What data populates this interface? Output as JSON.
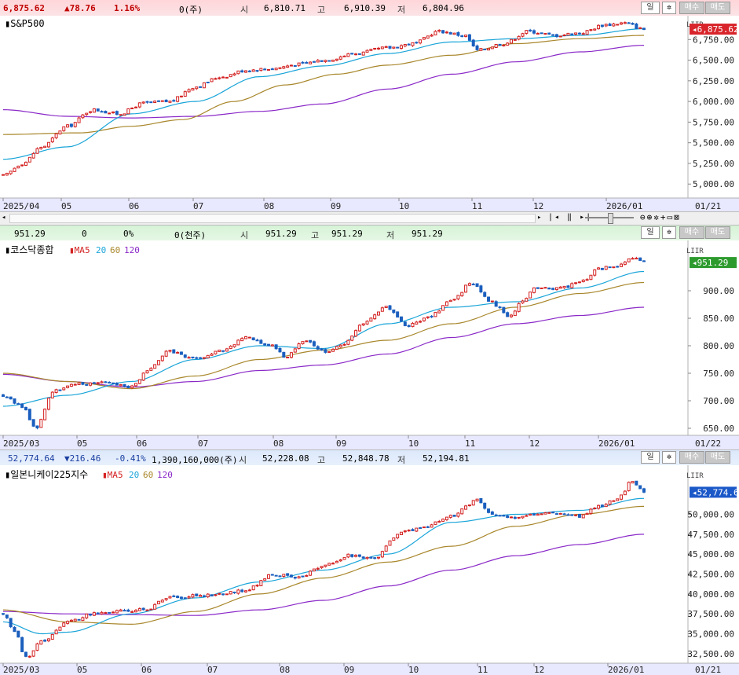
{
  "colors": {
    "up": "#d42020",
    "down": "#1b5fbe",
    "ma5": "#d42020",
    "ma20": "#18a4d8",
    "ma60": "#a8862a",
    "ma120": "#8a28c8",
    "price_tag_up": "#d8242a",
    "price_tag_green": "#2d9a2d",
    "price_tag_blue": "#1b58c8"
  },
  "period_label": "일",
  "buy_label": "매수",
  "sell_label": "매도",
  "panels": [
    {
      "quote": {
        "price": "6,875.62",
        "change": "▲78.76",
        "rate": "1.16%",
        "volume": "0(주)",
        "open_label": "시",
        "open": "6,810.71",
        "high_label": "고",
        "high": "6,910.39",
        "low_label": "저",
        "low": "6,804.96"
      },
      "title": "S&P500",
      "legend": [],
      "price_tag": "6,875.62",
      "x_labels": [
        "2025/04",
        "05",
        "06",
        "07",
        "08",
        "09",
        "10",
        "11",
        "12",
        "2026/01",
        "01/21"
      ],
      "y_labels": [
        "6,750.00",
        "6,500.00",
        "6,250.00",
        "6,000.00",
        "5,750.00",
        "5,500.00",
        "5,250.00",
        "5,000.00"
      ]
    },
    {
      "quote": {
        "price": "951.29",
        "change": "0",
        "rate": "0%",
        "volume": "0(천주)",
        "open_label": "시",
        "open": "951.29",
        "high_label": "고",
        "high": "951.29",
        "low_label": "저",
        "low": "951.29"
      },
      "title": "코스닥종합",
      "legend": [
        "MA",
        "5",
        "20",
        "60",
        "120"
      ],
      "price_tag": "951.29",
      "x_labels": [
        "2025/03",
        "05",
        "06",
        "07",
        "08",
        "09",
        "10",
        "11",
        "12",
        "2026/01",
        "01/22"
      ],
      "y_labels": [
        "900.00",
        "850.00",
        "800.00",
        "750.00",
        "700.00",
        "650.00"
      ]
    },
    {
      "quote": {
        "price": "52,774.64",
        "change": "▼216.46",
        "rate": "-0.41%",
        "volume": "1,390,160,000(주)",
        "open_label": "시",
        "open": "52,228.08",
        "high_label": "고",
        "high": "52,848.78",
        "low_label": "저",
        "low": "52,194.81"
      },
      "title": "일본니케이225지수",
      "legend": [
        "MA",
        "5",
        "20",
        "60",
        "120"
      ],
      "price_tag": "52,774.64",
      "x_labels": [
        "2025/03",
        "05",
        "06",
        "07",
        "08",
        "09",
        "10",
        "11",
        "12",
        "2026/01",
        "01/21"
      ],
      "y_labels": [
        "50,000.00",
        "47,500.00",
        "45,000.00",
        "42,500.00",
        "40,000.00",
        "37,500.00",
        "35,000.00",
        "32,500.00"
      ]
    }
  ],
  "chart_data": [
    {
      "type": "candlestick",
      "title": "S&P500",
      "x_range": [
        "2025/04",
        "2026/01/21"
      ],
      "ylim": [
        4850,
        7000
      ],
      "last": 6875.62,
      "close_path": [
        [
          0,
          5100
        ],
        [
          0.03,
          5250
        ],
        [
          0.06,
          5450
        ],
        [
          0.1,
          5700
        ],
        [
          0.14,
          5900
        ],
        [
          0.18,
          5850
        ],
        [
          0.22,
          5980
        ],
        [
          0.26,
          6000
        ],
        [
          0.3,
          6180
        ],
        [
          0.34,
          6300
        ],
        [
          0.38,
          6380
        ],
        [
          0.42,
          6400
        ],
        [
          0.46,
          6450
        ],
        [
          0.5,
          6500
        ],
        [
          0.55,
          6580
        ],
        [
          0.6,
          6650
        ],
        [
          0.64,
          6700
        ],
        [
          0.68,
          6850
        ],
        [
          0.72,
          6800
        ],
        [
          0.74,
          6620
        ],
        [
          0.78,
          6700
        ],
        [
          0.82,
          6850
        ],
        [
          0.86,
          6800
        ],
        [
          0.9,
          6830
        ],
        [
          0.94,
          6930
        ],
        [
          0.97,
          6950
        ],
        [
          1.0,
          6875
        ]
      ],
      "ma20": [
        [
          0,
          5300
        ],
        [
          0.1,
          5450
        ],
        [
          0.2,
          5850
        ],
        [
          0.3,
          6000
        ],
        [
          0.4,
          6300
        ],
        [
          0.5,
          6430
        ],
        [
          0.6,
          6580
        ],
        [
          0.7,
          6720
        ],
        [
          0.8,
          6760
        ],
        [
          0.9,
          6800
        ],
        [
          1.0,
          6880
        ]
      ],
      "ma60": [
        [
          0,
          5600
        ],
        [
          0.12,
          5620
        ],
        [
          0.2,
          5700
        ],
        [
          0.28,
          5780
        ],
        [
          0.36,
          6000
        ],
        [
          0.44,
          6200
        ],
        [
          0.52,
          6330
        ],
        [
          0.6,
          6440
        ],
        [
          0.7,
          6560
        ],
        [
          0.8,
          6700
        ],
        [
          0.9,
          6760
        ],
        [
          1.0,
          6800
        ]
      ],
      "ma120": [
        [
          0,
          5900
        ],
        [
          0.1,
          5820
        ],
        [
          0.2,
          5800
        ],
        [
          0.3,
          5820
        ],
        [
          0.4,
          5880
        ],
        [
          0.5,
          5970
        ],
        [
          0.6,
          6150
        ],
        [
          0.7,
          6330
        ],
        [
          0.8,
          6480
        ],
        [
          0.9,
          6600
        ],
        [
          1.0,
          6680
        ]
      ]
    },
    {
      "type": "candlestick",
      "title": "코스닥종합",
      "x_range": [
        "2025/03",
        "2026/01/22"
      ],
      "ylim": [
        640,
        960
      ],
      "last": 951.29,
      "close_path": [
        [
          0,
          710
        ],
        [
          0.03,
          690
        ],
        [
          0.05,
          650
        ],
        [
          0.08,
          720
        ],
        [
          0.12,
          730
        ],
        [
          0.16,
          735
        ],
        [
          0.2,
          725
        ],
        [
          0.23,
          760
        ],
        [
          0.26,
          790
        ],
        [
          0.3,
          775
        ],
        [
          0.34,
          790
        ],
        [
          0.38,
          815
        ],
        [
          0.42,
          800
        ],
        [
          0.44,
          780
        ],
        [
          0.47,
          810
        ],
        [
          0.5,
          790
        ],
        [
          0.53,
          800
        ],
        [
          0.56,
          840
        ],
        [
          0.6,
          870
        ],
        [
          0.63,
          835
        ],
        [
          0.66,
          850
        ],
        [
          0.7,
          880
        ],
        [
          0.73,
          915
        ],
        [
          0.76,
          880
        ],
        [
          0.79,
          855
        ],
        [
          0.81,
          880
        ],
        [
          0.83,
          905
        ],
        [
          0.87,
          905
        ],
        [
          0.9,
          915
        ],
        [
          0.93,
          940
        ],
        [
          0.96,
          945
        ],
        [
          0.98,
          960
        ],
        [
          1.0,
          951
        ]
      ],
      "ma20": [
        [
          0,
          690
        ],
        [
          0.1,
          710
        ],
        [
          0.2,
          735
        ],
        [
          0.3,
          775
        ],
        [
          0.4,
          800
        ],
        [
          0.5,
          795
        ],
        [
          0.6,
          840
        ],
        [
          0.7,
          870
        ],
        [
          0.8,
          880
        ],
        [
          0.9,
          905
        ],
        [
          1.0,
          935
        ]
      ],
      "ma60": [
        [
          0,
          750
        ],
        [
          0.1,
          735
        ],
        [
          0.2,
          722
        ],
        [
          0.3,
          745
        ],
        [
          0.4,
          775
        ],
        [
          0.5,
          792
        ],
        [
          0.6,
          810
        ],
        [
          0.7,
          840
        ],
        [
          0.8,
          870
        ],
        [
          0.9,
          895
        ],
        [
          1.0,
          915
        ]
      ],
      "ma120": [
        [
          0,
          748
        ],
        [
          0.1,
          735
        ],
        [
          0.2,
          725
        ],
        [
          0.3,
          735
        ],
        [
          0.4,
          755
        ],
        [
          0.5,
          765
        ],
        [
          0.6,
          785
        ],
        [
          0.7,
          815
        ],
        [
          0.8,
          840
        ],
        [
          0.9,
          855
        ],
        [
          1.0,
          870
        ]
      ]
    },
    {
      "type": "candlestick",
      "title": "일본니케이225지수",
      "x_range": [
        "2025/03",
        "2026/01/21"
      ],
      "ylim": [
        31500,
        54000
      ],
      "last": 52774.64,
      "close_path": [
        [
          0,
          37500
        ],
        [
          0.02,
          35000
        ],
        [
          0.035,
          32000
        ],
        [
          0.06,
          34000
        ],
        [
          0.1,
          36500
        ],
        [
          0.14,
          37500
        ],
        [
          0.18,
          37800
        ],
        [
          0.22,
          38000
        ],
        [
          0.26,
          39500
        ],
        [
          0.3,
          39800
        ],
        [
          0.34,
          40000
        ],
        [
          0.38,
          40500
        ],
        [
          0.42,
          42500
        ],
        [
          0.46,
          42000
        ],
        [
          0.5,
          43500
        ],
        [
          0.54,
          44800
        ],
        [
          0.58,
          44500
        ],
        [
          0.62,
          47800
        ],
        [
          0.66,
          48500
        ],
        [
          0.7,
          49800
        ],
        [
          0.74,
          51800
        ],
        [
          0.76,
          50000
        ],
        [
          0.79,
          49500
        ],
        [
          0.82,
          50000
        ],
        [
          0.86,
          50200
        ],
        [
          0.9,
          49800
        ],
        [
          0.93,
          51000
        ],
        [
          0.96,
          52000
        ],
        [
          0.98,
          54000
        ],
        [
          1.0,
          52800
        ]
      ],
      "ma20": [
        [
          0,
          36500
        ],
        [
          0.06,
          35000
        ],
        [
          0.1,
          35200
        ],
        [
          0.2,
          37500
        ],
        [
          0.3,
          39500
        ],
        [
          0.4,
          41500
        ],
        [
          0.5,
          43000
        ],
        [
          0.6,
          45000
        ],
        [
          0.7,
          49000
        ],
        [
          0.8,
          50000
        ],
        [
          0.9,
          50500
        ],
        [
          1.0,
          52000
        ]
      ],
      "ma60": [
        [
          0,
          38000
        ],
        [
          0.1,
          36500
        ],
        [
          0.2,
          36200
        ],
        [
          0.3,
          37800
        ],
        [
          0.4,
          40000
        ],
        [
          0.5,
          42000
        ],
        [
          0.6,
          44000
        ],
        [
          0.7,
          46000
        ],
        [
          0.8,
          48500
        ],
        [
          0.9,
          50000
        ],
        [
          1.0,
          51000
        ]
      ],
      "ma120": [
        [
          0,
          37800
        ],
        [
          0.1,
          37500
        ],
        [
          0.2,
          37400
        ],
        [
          0.3,
          37300
        ],
        [
          0.4,
          38000
        ],
        [
          0.5,
          39200
        ],
        [
          0.6,
          41000
        ],
        [
          0.7,
          43000
        ],
        [
          0.8,
          44800
        ],
        [
          0.9,
          46200
        ],
        [
          1.0,
          47500
        ]
      ]
    }
  ]
}
